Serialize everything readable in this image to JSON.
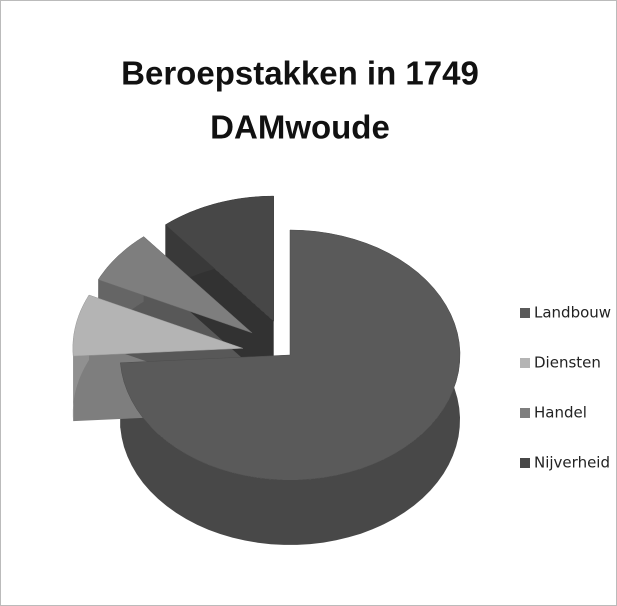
{
  "chart_data": {
    "type": "pie3d",
    "title": [
      "Beroepstakken in 1749",
      "DAMwoude"
    ],
    "categories": [
      "Landbouw",
      "Diensten",
      "Handel",
      "Nijverheid"
    ],
    "values": [
      74,
      8,
      7,
      11
    ],
    "colors": [
      "#5a5a5a",
      "#b4b4b4",
      "#7e7e7e",
      "#474747"
    ],
    "legend": "right"
  }
}
